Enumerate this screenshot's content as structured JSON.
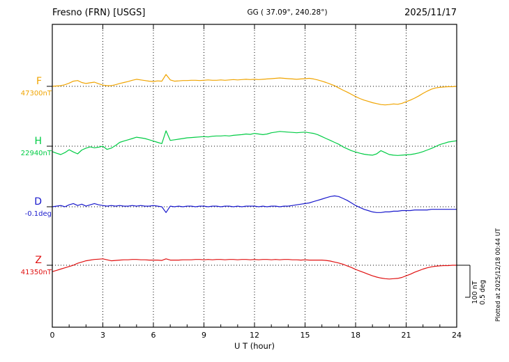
{
  "header": {
    "station": "Fresno (FRN)  [USGS]",
    "coords": "GG ( 37.09°, 240.28°)",
    "date": "2025/11/17"
  },
  "footer": {
    "plotted_at": "Plotted at 2025/12/18 00:44 UT"
  },
  "scale_bar": {
    "nt": "100 nT",
    "deg": "0.5 deg"
  },
  "chart_data": {
    "type": "line",
    "title": "Fresno (FRN) [USGS] magnetogram 2025/11/17",
    "xlabel": "U T (hour)",
    "x_range": [
      0,
      24
    ],
    "x_step_hours": 0.25,
    "x_ticks": [
      0,
      3,
      6,
      9,
      12,
      15,
      18,
      21,
      24
    ],
    "grid": "dotted vertical lines every 3 hours; dotted horizontal baseline for each trace",
    "scale": {
      "nT_per_div": 100,
      "deg_per_div": 0.5
    },
    "series": [
      {
        "name": "F",
        "baseline_label": "47300nT",
        "baseline_value": 47300,
        "unit": "nT",
        "color": "#f0a400",
        "offsets": [
          0,
          1,
          2,
          5,
          10,
          16,
          18,
          12,
          9,
          11,
          13,
          8,
          4,
          2,
          2,
          5,
          9,
          12,
          15,
          19,
          22,
          20,
          18,
          16,
          15,
          17,
          16,
          37,
          20,
          16,
          17,
          18,
          18,
          19,
          19,
          18,
          19,
          20,
          19,
          19,
          20,
          19,
          20,
          21,
          20,
          21,
          22,
          21,
          22,
          21,
          22,
          23,
          24,
          25,
          26,
          25,
          24,
          23,
          22,
          23,
          24,
          25,
          23,
          20,
          16,
          12,
          7,
          2,
          -5,
          -12,
          -18,
          -25,
          -32,
          -38,
          -43,
          -47,
          -51,
          -54,
          -57,
          -58,
          -57,
          -55,
          -56,
          -53,
          -48,
          -43,
          -37,
          -30,
          -22,
          -15,
          -9,
          -5,
          -3,
          -2,
          -1,
          -1,
          0
        ]
      },
      {
        "name": "H",
        "baseline_label": "22940nT",
        "baseline_value": 22940,
        "unit": "nT",
        "color": "#00cc44",
        "offsets": [
          -17,
          -22,
          -26,
          -20,
          -11,
          -18,
          -24,
          -12,
          -6,
          -2,
          -5,
          -3,
          0,
          -10,
          -6,
          2,
          12,
          16,
          20,
          24,
          28,
          26,
          24,
          20,
          16,
          12,
          8,
          48,
          18,
          20,
          22,
          24,
          26,
          27,
          28,
          29,
          30,
          29,
          31,
          32,
          32,
          33,
          32,
          34,
          35,
          36,
          38,
          37,
          40,
          38,
          36,
          38,
          42,
          44,
          46,
          45,
          44,
          43,
          42,
          43,
          44,
          42,
          40,
          36,
          30,
          24,
          18,
          12,
          6,
          -2,
          -8,
          -14,
          -18,
          -22,
          -25,
          -27,
          -28,
          -24,
          -14,
          -20,
          -26,
          -28,
          -29,
          -28,
          -27,
          -26,
          -24,
          -21,
          -17,
          -12,
          -7,
          -1,
          5,
          9,
          13,
          15,
          17
        ]
      },
      {
        "name": "D",
        "baseline_label": "-0.1deg",
        "baseline_value": -0.1,
        "unit": "deg",
        "color": "#1818cc",
        "offsets": [
          0,
          0.01,
          0.02,
          0,
          0.03,
          0.05,
          0.02,
          0.04,
          0.01,
          0.03,
          0.05,
          0.03,
          0.02,
          0.01,
          0.02,
          0.01,
          0.02,
          0.01,
          0.01,
          0.02,
          0.01,
          0.02,
          0.01,
          0.01,
          0.02,
          0.01,
          0,
          -0.09,
          0.01,
          0,
          0.01,
          0,
          0.01,
          0.01,
          0,
          0.01,
          0.01,
          0,
          0.01,
          0.01,
          0,
          0.01,
          0.01,
          0,
          0.01,
          0,
          0.01,
          0.01,
          0.01,
          0,
          0.01,
          0,
          0.01,
          0.01,
          0,
          0.01,
          0.01,
          0.02,
          0.03,
          0.04,
          0.05,
          0.06,
          0.08,
          0.1,
          0.12,
          0.14,
          0.16,
          0.17,
          0.16,
          0.13,
          0.1,
          0.06,
          0.02,
          -0.01,
          -0.04,
          -0.06,
          -0.08,
          -0.09,
          -0.09,
          -0.08,
          -0.08,
          -0.07,
          -0.07,
          -0.06,
          -0.06,
          -0.06,
          -0.05,
          -0.05,
          -0.05,
          -0.05,
          -0.04,
          -0.04,
          -0.04,
          -0.04,
          -0.04,
          -0.04,
          -0.04
        ]
      },
      {
        "name": "Z",
        "baseline_label": "41350nT",
        "baseline_value": 41350,
        "unit": "nT",
        "color": "#e01010",
        "offsets": [
          -20,
          -16,
          -12,
          -8,
          -4,
          0,
          6,
          10,
          14,
          16,
          18,
          19,
          20,
          17,
          14,
          15,
          16,
          17,
          17,
          18,
          18,
          17,
          17,
          16,
          16,
          16,
          15,
          20,
          16,
          16,
          16,
          17,
          17,
          17,
          18,
          18,
          17,
          18,
          17,
          18,
          18,
          17,
          18,
          18,
          17,
          18,
          18,
          17,
          18,
          17,
          18,
          18,
          17,
          18,
          17,
          18,
          18,
          17,
          17,
          16,
          17,
          16,
          16,
          16,
          16,
          15,
          13,
          10,
          7,
          3,
          -2,
          -7,
          -13,
          -18,
          -23,
          -28,
          -33,
          -37,
          -40,
          -42,
          -43,
          -42,
          -41,
          -38,
          -33,
          -28,
          -22,
          -17,
          -12,
          -8,
          -5,
          -3,
          -2,
          -1,
          -1,
          0,
          0
        ]
      }
    ]
  }
}
